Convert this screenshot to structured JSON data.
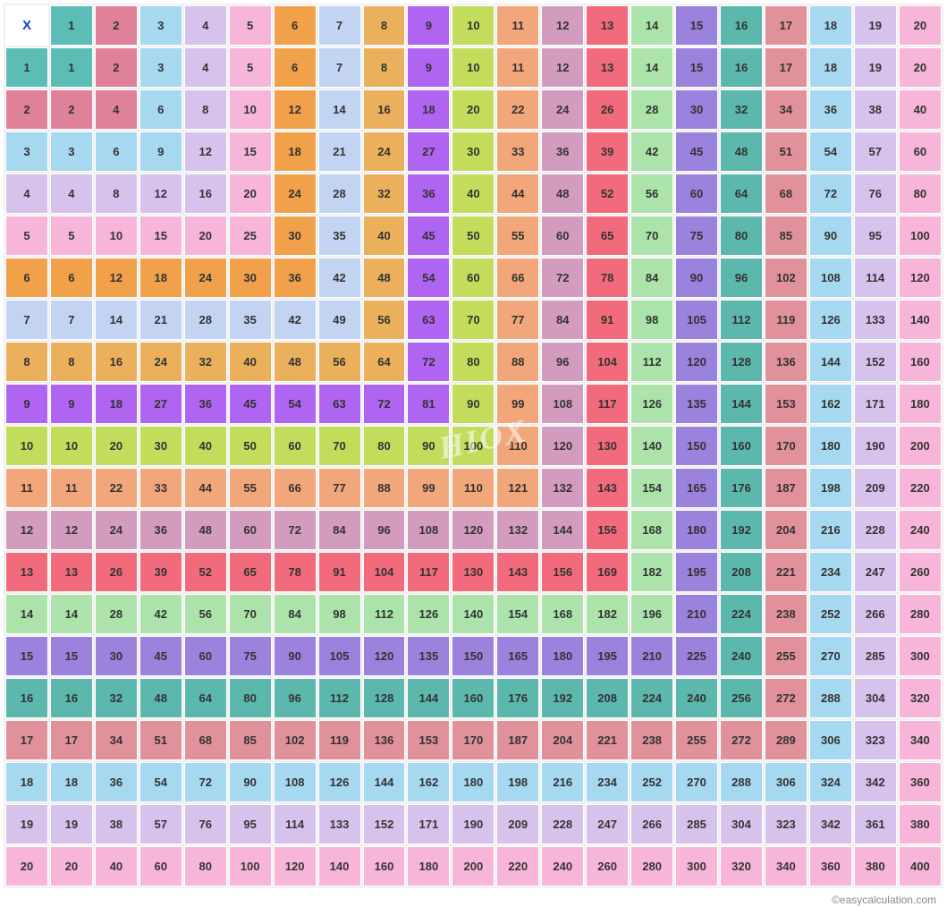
{
  "table": {
    "type": "multiplication-table",
    "size": 20,
    "corner_label": "X",
    "corner_text_color": "#1a3fd6",
    "cell_text_color": "#333333",
    "cell_fontsize": 13,
    "cell_fontweight": "bold",
    "column_colors": [
      "#5cbdb6",
      "#e0819a",
      "#a6d8f0",
      "#d7c2ec",
      "#f7b6d9",
      "#f0a14a",
      "#c3d4f2",
      "#ebb05c",
      "#b064f2",
      "#c2dd5c",
      "#f2a77a",
      "#d39bbd",
      "#f26b7d",
      "#abe3ab",
      "#9a82dd",
      "#5cb8ad",
      "#e0919a",
      "#a6d8f0",
      "#d7c2ec",
      "#f7b6d9"
    ],
    "background_color": "#ffffff",
    "grid_spacing_color": "#f0f0f0"
  },
  "watermark": {
    "text": "HIOX",
    "color_rgba": "rgba(255,255,255,0.55)",
    "fontsize": 36,
    "rotation_deg": -12
  },
  "footer": {
    "text": "©easycalculation.com",
    "fontsize": 12,
    "color": "#888888"
  }
}
